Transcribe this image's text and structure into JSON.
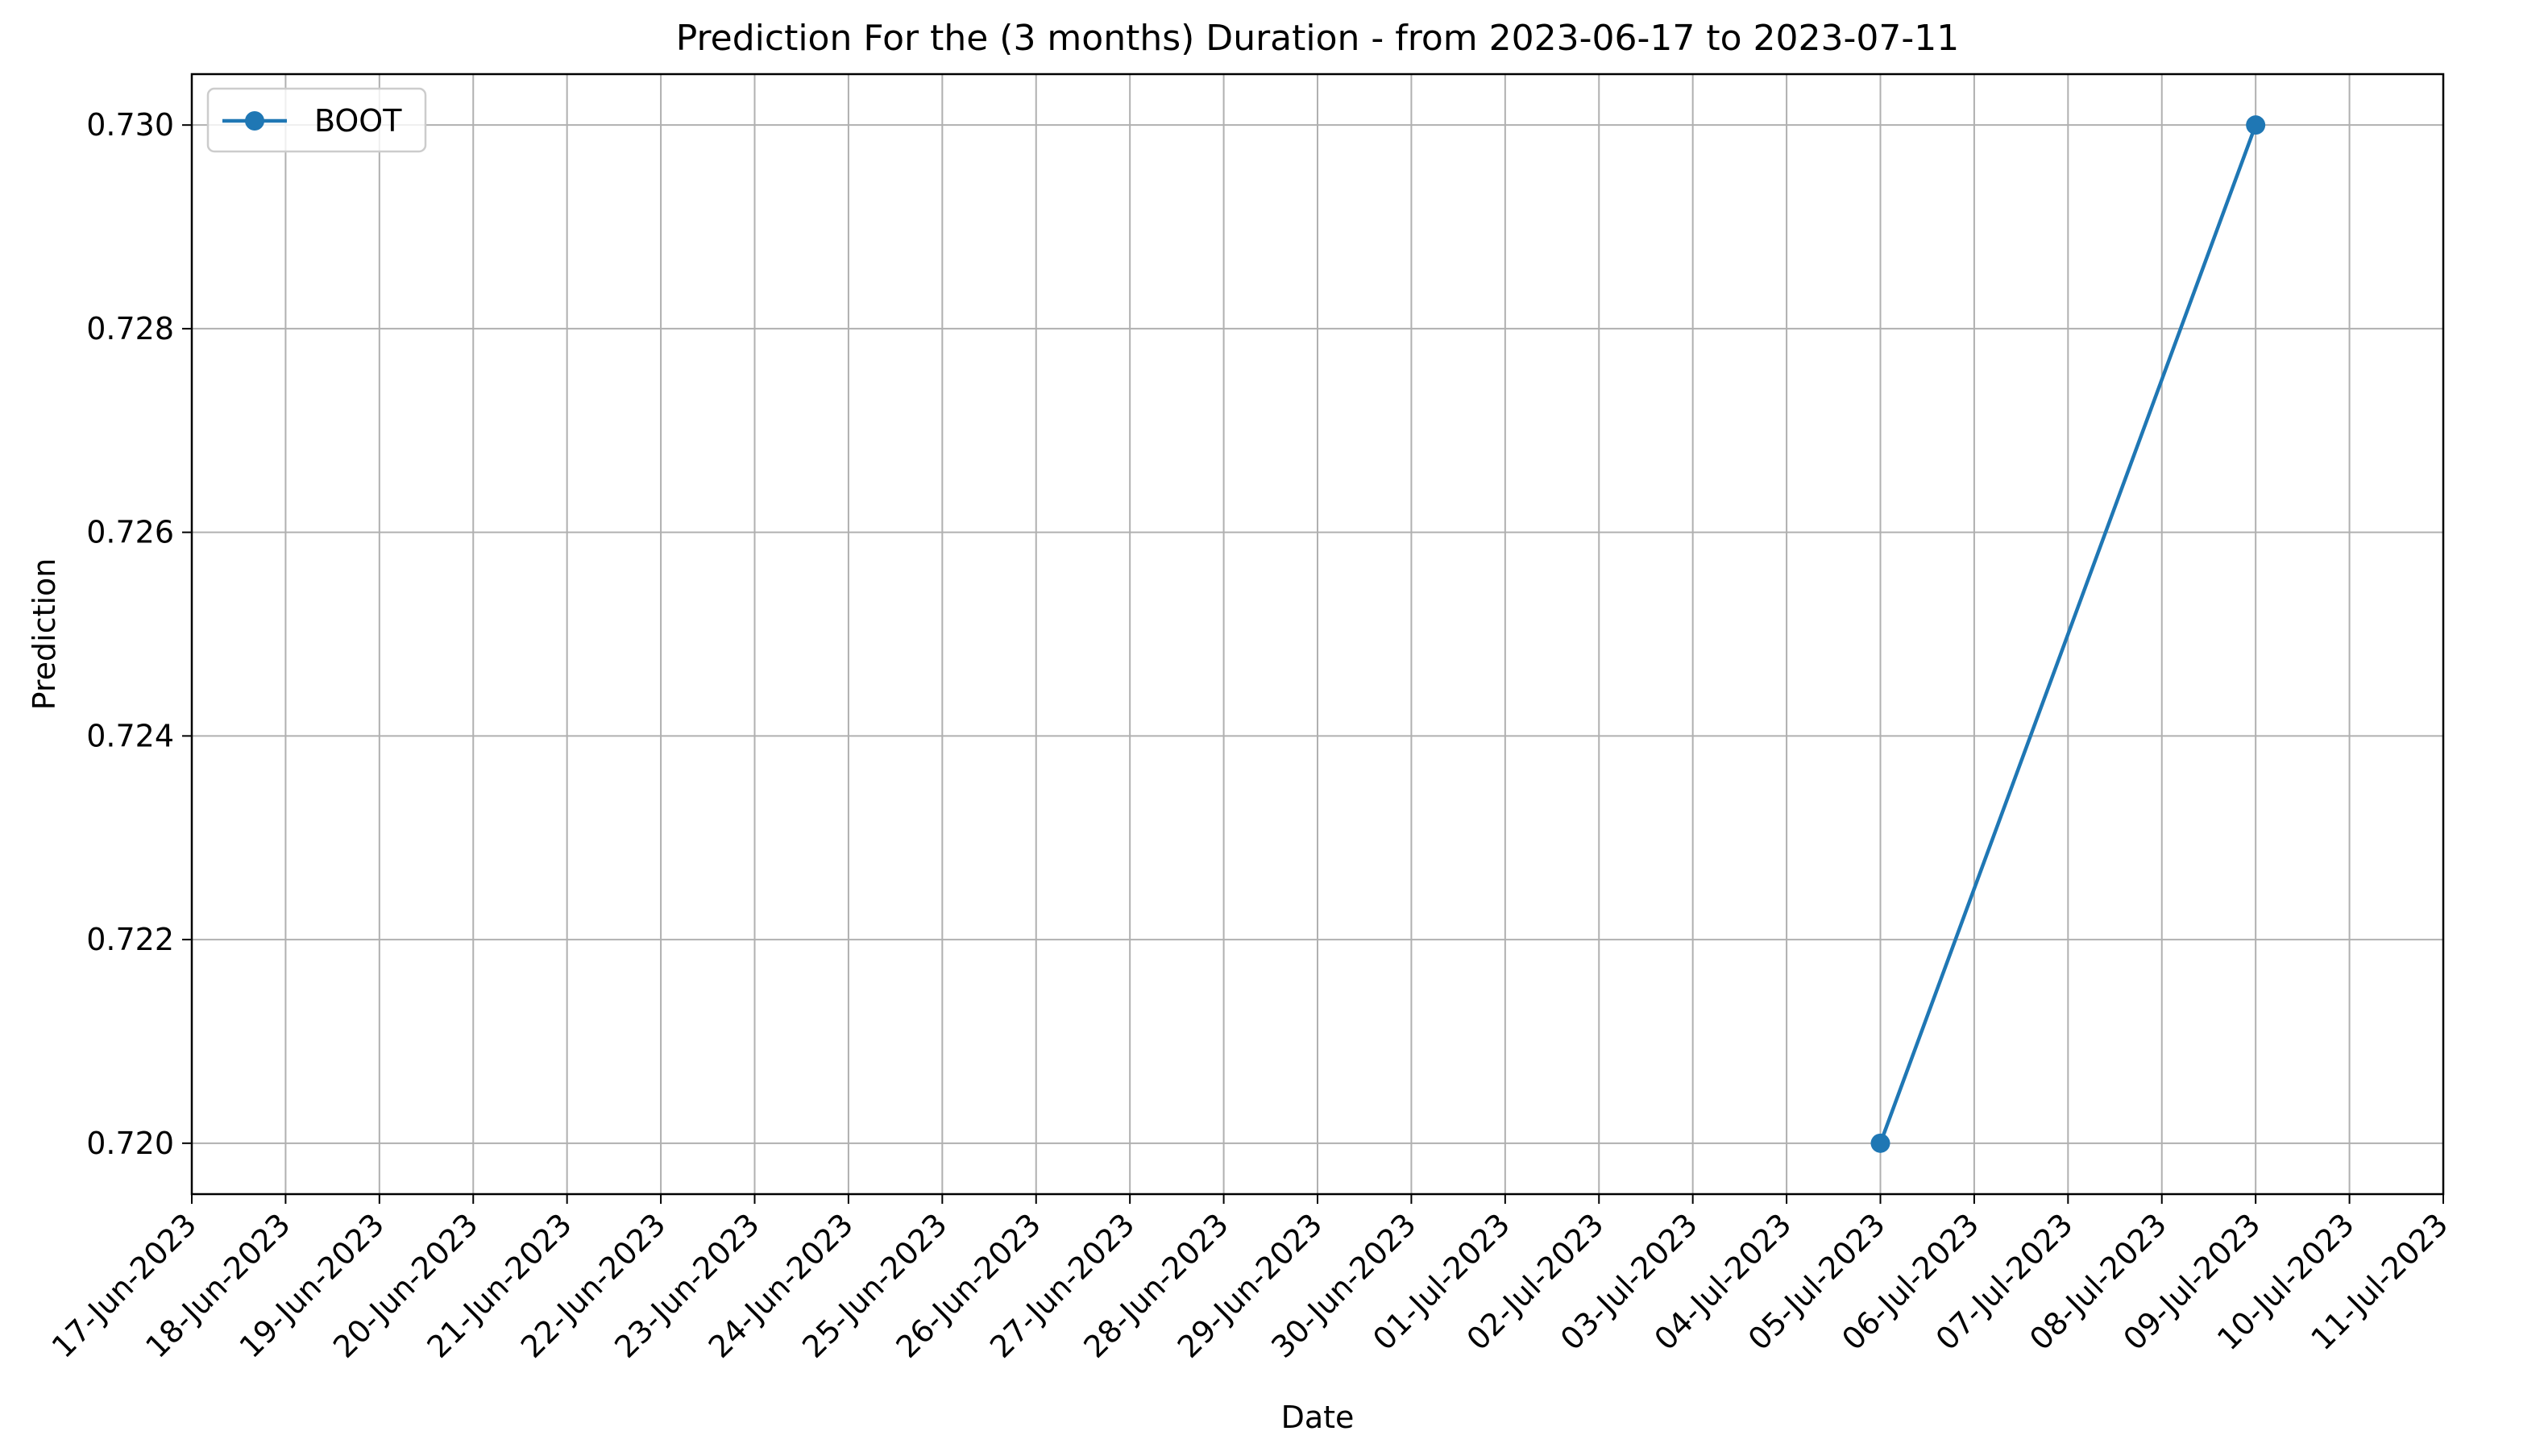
{
  "chart_data": {
    "type": "line",
    "title": "Prediction For the (3 months) Duration - from 2023-06-17 to 2023-07-11",
    "xlabel": "Date",
    "ylabel": "Prediction",
    "x_ticks": [
      "17-Jun-2023",
      "18-Jun-2023",
      "19-Jun-2023",
      "20-Jun-2023",
      "21-Jun-2023",
      "22-Jun-2023",
      "23-Jun-2023",
      "24-Jun-2023",
      "25-Jun-2023",
      "26-Jun-2023",
      "27-Jun-2023",
      "28-Jun-2023",
      "29-Jun-2023",
      "30-Jun-2023",
      "01-Jul-2023",
      "02-Jul-2023",
      "03-Jul-2023",
      "04-Jul-2023",
      "05-Jul-2023",
      "06-Jul-2023",
      "07-Jul-2023",
      "08-Jul-2023",
      "09-Jul-2023",
      "10-Jul-2023",
      "11-Jul-2023"
    ],
    "y_ticks": [
      "0.720",
      "0.722",
      "0.724",
      "0.726",
      "0.728",
      "0.730"
    ],
    "ylim": [
      0.7195,
      0.7305
    ],
    "xlim": [
      "2023-06-17",
      "2023-07-11"
    ],
    "grid": true,
    "legend_position": "upper-left",
    "series": [
      {
        "name": "BOOT",
        "color": "#1f77b4",
        "marker": "circle",
        "x": [
          "2023-07-05",
          "2023-07-09"
        ],
        "y": [
          0.72,
          0.73
        ]
      }
    ]
  }
}
